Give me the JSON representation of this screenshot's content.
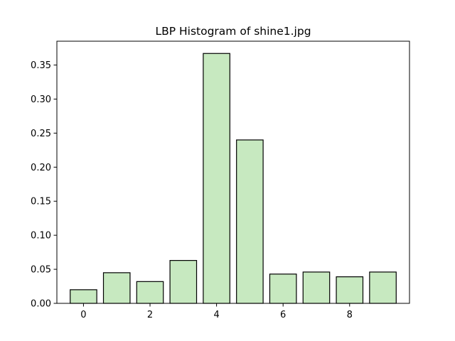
{
  "chart_data": {
    "type": "bar",
    "title": "LBP Histogram of shine1.jpg",
    "xlabel": "",
    "ylabel": "",
    "categories": [
      0,
      1,
      2,
      3,
      4,
      5,
      6,
      7,
      8,
      9
    ],
    "values": [
      0.02,
      0.045,
      0.032,
      0.063,
      0.367,
      0.24,
      0.043,
      0.046,
      0.039,
      0.046
    ],
    "xlim": [
      -0.8,
      9.8
    ],
    "ylim": [
      0,
      0.385
    ],
    "xticks": [
      0,
      2,
      4,
      6,
      8
    ],
    "xtick_labels": [
      "0",
      "2",
      "4",
      "6",
      "8"
    ],
    "yticks": [
      0.0,
      0.05,
      0.1,
      0.15,
      0.2,
      0.25,
      0.3,
      0.35
    ],
    "ytick_labels": [
      "0.00",
      "0.05",
      "0.10",
      "0.15",
      "0.20",
      "0.25",
      "0.30",
      "0.35"
    ],
    "bar_color": "#c7e9c0",
    "edge_color": "#000000",
    "grid": false,
    "legend": "none"
  }
}
